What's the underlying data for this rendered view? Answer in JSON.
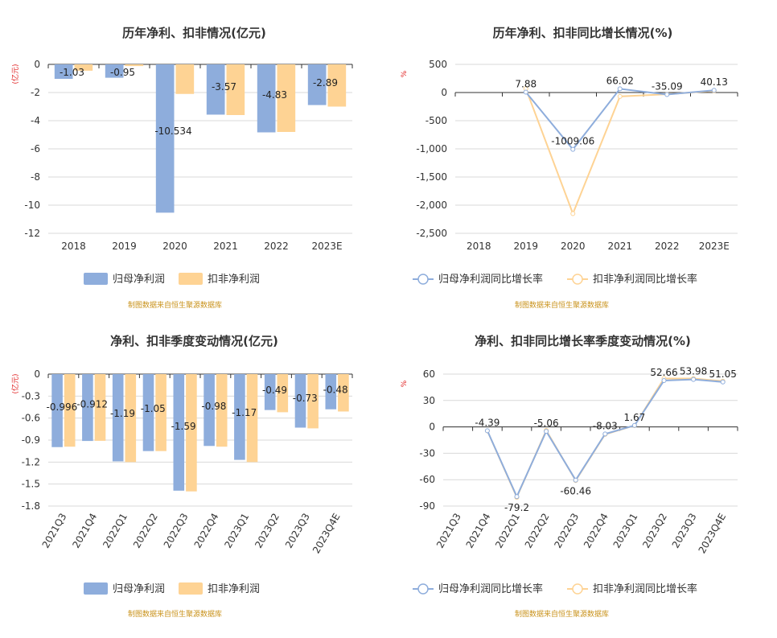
{
  "colors": {
    "net": "#8eaddc",
    "deduct": "#fed394",
    "grid": "#d9d9d9",
    "axis": "#333333",
    "title": "#333333",
    "unit": "#e02020",
    "source": "#c9921a"
  },
  "source_text": "制图数据来自恒生聚源数据库",
  "chart_data": [
    {
      "type": "bar",
      "title": "历年净利、扣非情况(亿元)",
      "ylabel": "(亿元)",
      "categories": [
        "2018",
        "2019",
        "2020",
        "2021",
        "2022",
        "2023E"
      ],
      "ylim": [
        -12,
        0
      ],
      "yticks": [
        0,
        -2,
        -4,
        -6,
        -8,
        -10,
        -12
      ],
      "ytick_labels": [
        "0",
        "-2",
        "-4",
        "-6",
        "-8",
        "-10",
        "-12"
      ],
      "series": [
        {
          "name": "归母净利润",
          "values": [
            -1.03,
            -0.95,
            -10.534,
            -3.57,
            -4.83,
            -2.89
          ],
          "labels": [
            "-1.03",
            "-0.95",
            "-10.534",
            "-3.57",
            "-4.83",
            "-2.89"
          ]
        },
        {
          "name": "扣非净利润",
          "values": [
            -0.45,
            -0.12,
            -2.1,
            -3.6,
            -4.8,
            -3.0
          ]
        }
      ],
      "legend": [
        "归母净利润",
        "扣非净利润"
      ]
    },
    {
      "type": "line",
      "title": "历年净利、扣非同比增长情况(%)",
      "ylabel": "%",
      "categories": [
        "2018",
        "2019",
        "2020",
        "2021",
        "2022",
        "2023E"
      ],
      "ylim": [
        -2500,
        500
      ],
      "yticks": [
        500,
        0,
        -500,
        -1000,
        -1500,
        -2000,
        -2500
      ],
      "ytick_labels": [
        "500",
        "0",
        "-500",
        "-1,000",
        "-1,500",
        "-2,000",
        "-2,500"
      ],
      "series": [
        {
          "name": "归母净利润同比增长率",
          "values": [
            null,
            7.88,
            -1009.06,
            66.02,
            -35.09,
            40.13
          ],
          "labels": [
            "",
            "7.88",
            "-1009.06",
            "66.02",
            "-35.09",
            "40.13"
          ]
        },
        {
          "name": "扣非净利润同比增长率",
          "values": [
            null,
            70,
            -2150,
            -70,
            -30,
            30
          ]
        }
      ],
      "legend": [
        "归母净利润同比增长率",
        "扣非净利润同比增长率"
      ]
    },
    {
      "type": "bar",
      "title": "净利、扣非季度变动情况(亿元)",
      "ylabel": "(亿元)",
      "categories": [
        "2021Q3",
        "2021Q4",
        "2022Q1",
        "2022Q2",
        "2022Q3",
        "2022Q4",
        "2023Q1",
        "2023Q2",
        "2023Q3",
        "2023Q4E"
      ],
      "ylim": [
        -1.8,
        0
      ],
      "yticks": [
        0,
        -0.3,
        -0.6,
        -0.9,
        -1.2,
        -1.5,
        -1.8
      ],
      "ytick_labels": [
        "0",
        "-0.3",
        "-0.6",
        "-0.9",
        "-1.2",
        "-1.5",
        "-1.8"
      ],
      "series": [
        {
          "name": "归母净利润",
          "values": [
            -0.996,
            -0.912,
            -1.19,
            -1.05,
            -1.59,
            -0.98,
            -1.17,
            -0.49,
            -0.73,
            -0.48
          ],
          "labels": [
            "-0.996",
            "-0.912",
            "-1.19",
            "-1.05",
            "-1.59",
            "-0.98",
            "-1.17",
            "-0.49",
            "-0.73",
            "-0.48"
          ]
        },
        {
          "name": "扣非净利润",
          "values": [
            -0.99,
            -0.91,
            -1.2,
            -1.05,
            -1.6,
            -0.99,
            -1.2,
            -0.52,
            -0.74,
            -0.51
          ]
        }
      ],
      "legend": [
        "归母净利润",
        "扣非净利润"
      ]
    },
    {
      "type": "line",
      "title": "净利、扣非同比增长率季度变动情况(%)",
      "ylabel": "%",
      "categories": [
        "2021Q3",
        "2021Q4",
        "2022Q1",
        "2022Q2",
        "2022Q3",
        "2022Q4",
        "2023Q1",
        "2023Q2",
        "2023Q3",
        "2023Q4E"
      ],
      "ylim": [
        -90,
        60
      ],
      "yticks": [
        60,
        30,
        0,
        -30,
        -60,
        -90
      ],
      "ytick_labels": [
        "60",
        "30",
        "0",
        "-30",
        "-60",
        "-90"
      ],
      "series": [
        {
          "name": "归母净利润同比增长率",
          "values": [
            null,
            -4.39,
            -79.2,
            -5.06,
            -60.46,
            -8.03,
            1.67,
            52.66,
            53.98,
            51.05
          ],
          "labels": [
            "",
            "-4.39",
            "-79.2",
            "-5.06",
            "-60.46",
            "-8.03",
            "1.67",
            "52.66",
            "53.98",
            "51.05"
          ]
        },
        {
          "name": "扣非净利润同比增长率",
          "values": [
            null,
            -4.5,
            -80,
            -4,
            -61,
            -8.5,
            1.5,
            55,
            55,
            52
          ]
        }
      ],
      "legend": [
        "归母净利润同比增长率",
        "扣非净利润同比增长率"
      ]
    }
  ]
}
